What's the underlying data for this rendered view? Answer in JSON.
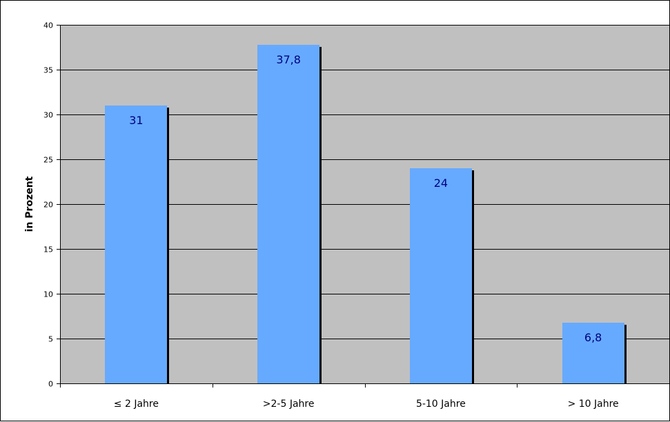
{
  "chart_data": {
    "type": "bar",
    "title": "",
    "xlabel": "",
    "ylabel": "in Prozent",
    "categories": [
      "≤ 2 Jahre",
      ">2-5 Jahre",
      "5-10 Jahre",
      "> 10 Jahre"
    ],
    "values": [
      31,
      37.8,
      24,
      6.8
    ],
    "data_labels": [
      "31",
      "37,8",
      "24",
      "6,8"
    ],
    "ylim": [
      0,
      40
    ],
    "yticks": [
      0,
      5,
      10,
      15,
      20,
      25,
      30,
      35,
      40
    ],
    "grid": true,
    "legend": "none",
    "colors": {
      "bar": "#66aaff",
      "plot_background": "#c0c0c0",
      "gridline": "#000000",
      "data_label": "#000080"
    }
  }
}
